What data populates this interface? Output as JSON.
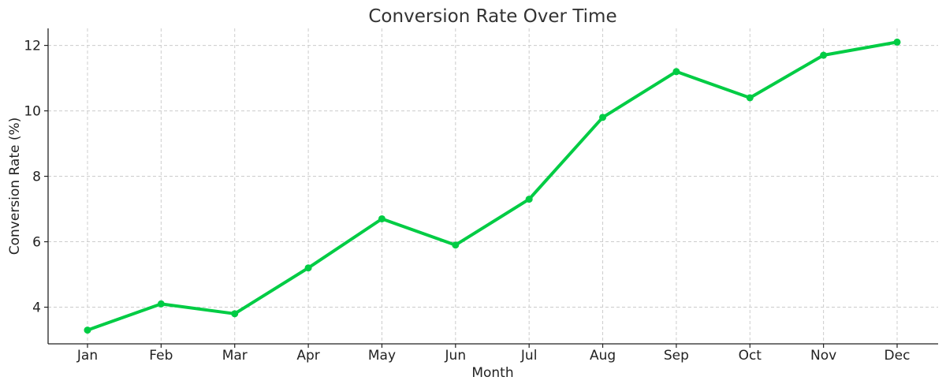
{
  "chart_data": {
    "type": "line",
    "title": "Conversion Rate Over Time",
    "xlabel": "Month",
    "ylabel": "Conversion Rate (%)",
    "categories": [
      "Jan",
      "Feb",
      "Mar",
      "Apr",
      "May",
      "Jun",
      "Jul",
      "Aug",
      "Sep",
      "Oct",
      "Nov",
      "Dec"
    ],
    "series": [
      {
        "values": [
          3.3,
          4.1,
          3.8,
          5.2,
          6.7,
          5.9,
          7.3,
          9.8,
          11.2,
          10.4,
          11.7,
          12.1
        ],
        "color": "#00cc44",
        "marker": "circle"
      }
    ],
    "yticks": [
      4,
      6,
      8,
      10,
      12
    ],
    "ylim": [
      2.88,
      12.52
    ],
    "grid": true
  }
}
